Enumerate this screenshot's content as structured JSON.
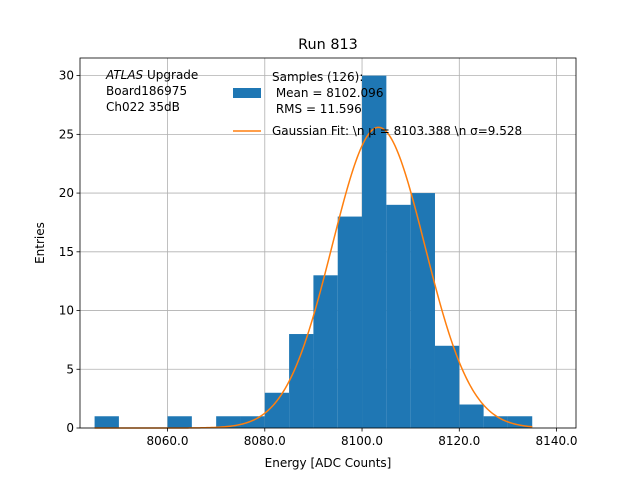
{
  "chart_data": {
    "type": "bar",
    "title": "Run 813",
    "xlabel": "Energy [ADC Counts]",
    "ylabel": "Entries",
    "xlim": [
      8042,
      8144
    ],
    "ylim": [
      0,
      31.5
    ],
    "x_ticks": [
      8060.0,
      8080.0,
      8100.0,
      8120.0,
      8140.0
    ],
    "x_tick_labels": [
      "8060.0",
      "8080.0",
      "8100.0",
      "8120.0",
      "8140.0"
    ],
    "y_ticks": [
      0,
      5,
      10,
      15,
      20,
      25,
      30
    ],
    "y_tick_labels": [
      "0",
      "5",
      "10",
      "15",
      "20",
      "25",
      "30"
    ],
    "grid": true,
    "bin_width": 5,
    "bins": [
      {
        "start": 8045,
        "count": 1
      },
      {
        "start": 8050,
        "count": 0
      },
      {
        "start": 8055,
        "count": 0
      },
      {
        "start": 8060,
        "count": 1
      },
      {
        "start": 8065,
        "count": 0
      },
      {
        "start": 8070,
        "count": 1
      },
      {
        "start": 8075,
        "count": 1
      },
      {
        "start": 8080,
        "count": 3
      },
      {
        "start": 8085,
        "count": 8
      },
      {
        "start": 8090,
        "count": 13
      },
      {
        "start": 8095,
        "count": 18
      },
      {
        "start": 8100,
        "count": 30
      },
      {
        "start": 8105,
        "count": 19
      },
      {
        "start": 8110,
        "count": 20
      },
      {
        "start": 8115,
        "count": 7
      },
      {
        "start": 8120,
        "count": 2
      },
      {
        "start": 8125,
        "count": 1
      },
      {
        "start": 8130,
        "count": 1
      }
    ],
    "fit": {
      "mu": 8103.388,
      "sigma": 9.528,
      "amplitude": 25.6,
      "x_range": [
        8045,
        8135
      ]
    },
    "series": [
      {
        "name": "Samples (126):\n Mean = 8102.096\n RMS = 11.596",
        "color": "#1f77b4",
        "kind": "histogram"
      },
      {
        "name": "Gaussian Fit: \\n μ = 8103.388 \\n σ=9.528",
        "color": "#ff7f0e",
        "kind": "line"
      }
    ],
    "annotation": {
      "lines": [
        {
          "italic": "ATLAS",
          "text": " Upgrade"
        },
        {
          "italic": "",
          "text": " Board186975"
        },
        {
          "italic": "",
          "text": " Ch022 35dB"
        }
      ]
    },
    "legend_placement": "top-right"
  }
}
